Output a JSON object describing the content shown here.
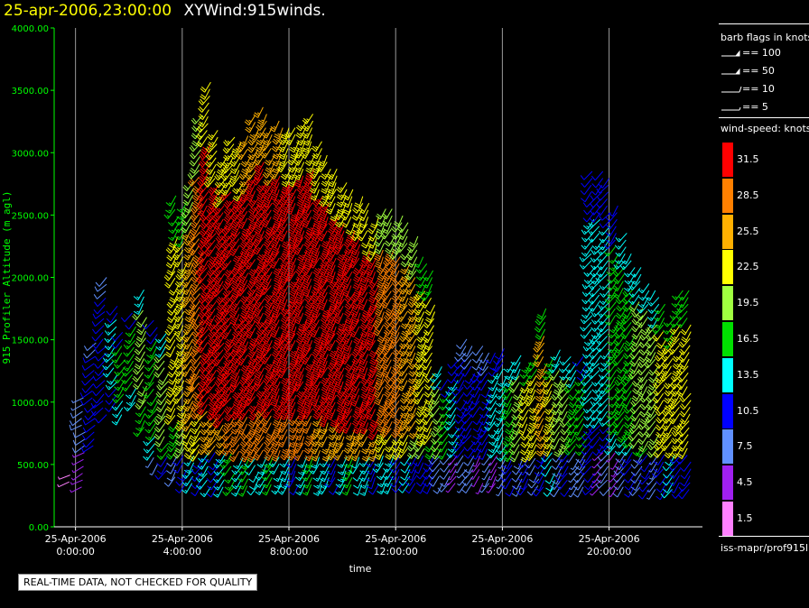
{
  "header": {
    "timestamp": "25-apr-2006,23:00:00",
    "plot_title": "XYWind:915winds."
  },
  "legend": {
    "barb_title": "barb flags in knots",
    "barbs": [
      {
        "label": "== 100",
        "kind": "flag"
      },
      {
        "label": "== 50",
        "kind": "flag"
      },
      {
        "label": "== 10",
        "kind": "full"
      },
      {
        "label": "== 5",
        "kind": "half"
      }
    ],
    "speed_title": "wind-speed: knots",
    "speed_scale": [
      {
        "label": "31.5",
        "color": "#ff0000"
      },
      {
        "label": "28.5",
        "color": "#ff8000"
      },
      {
        "label": "25.5",
        "color": "#ffb000"
      },
      {
        "label": "22.5",
        "color": "#ffff00"
      },
      {
        "label": "19.5",
        "color": "#a0ff40"
      },
      {
        "label": "16.5",
        "color": "#00e000"
      },
      {
        "label": "13.5",
        "color": "#00ffff"
      },
      {
        "label": "10.5",
        "color": "#0000ff"
      },
      {
        "label": "7.5",
        "color": "#6090ff"
      },
      {
        "label": "4.5",
        "color": "#a020f0"
      },
      {
        "label": "1.5",
        "color": "#ff80ff"
      }
    ]
  },
  "footer": {
    "quality_note": "REAL-TIME DATA, NOT CHECKED FOR QUALITY",
    "product": "iss-mapr/prof915l"
  },
  "chart_data": {
    "type": "wind-barb",
    "ylabel": "915 Profiler Altitude (m agl)",
    "xlabel": "time",
    "ylim": [
      0,
      4000
    ],
    "yticks": [
      "0.00",
      "500.00",
      "1000.00",
      "1500.00",
      "2000.00",
      "2500.00",
      "3000.00",
      "3500.00",
      "4000.00"
    ],
    "xlim_hours": [
      -0.8,
      23.5
    ],
    "xticks": [
      {
        "hour": 0,
        "date": "25-Apr-2006",
        "time": "0:00:00"
      },
      {
        "hour": 4,
        "date": "25-Apr-2006",
        "time": "4:00:00"
      },
      {
        "hour": 8,
        "date": "25-Apr-2006",
        "time": "8:00:00"
      },
      {
        "hour": 12,
        "date": "25-Apr-2006",
        "time": "12:00:00"
      },
      {
        "hour": 16,
        "date": "25-Apr-2006",
        "time": "16:00:00"
      },
      {
        "hour": 20,
        "date": "25-Apr-2006",
        "time": "20:00:00"
      }
    ],
    "speed_bins_kts": [
      1.5,
      4.5,
      7.5,
      10.5,
      13.5,
      16.5,
      19.5,
      22.5,
      25.5,
      28.5,
      31.5
    ],
    "profiles": [
      {
        "hour": -0.2,
        "top": 420,
        "bottom": 360,
        "speed": 8,
        "dir": 250
      },
      {
        "hour": 0.3,
        "top": 1050,
        "bottom": 320,
        "speed": 9,
        "dir": 240
      },
      {
        "hour": 0.7,
        "top": 1500,
        "bottom": 650,
        "speed": 12,
        "dir": 230
      },
      {
        "hour": 1.1,
        "top": 2000,
        "bottom": 900,
        "speed": 12,
        "dir": 225
      },
      {
        "hour": 1.5,
        "top": 1800,
        "bottom": 1000,
        "speed": 15,
        "dir": 220
      },
      {
        "hour": 1.8,
        "top": 1600,
        "bottom": 900,
        "speed": 17,
        "dir": 215
      },
      {
        "hour": 2.2,
        "top": 1750,
        "bottom": 1000,
        "speed": 16,
        "dir": 215
      },
      {
        "hour": 2.6,
        "top": 1900,
        "bottom": 800,
        "speed": 19,
        "dir": 210
      },
      {
        "hour": 3.0,
        "top": 1700,
        "bottom": 500,
        "speed": 16,
        "dir": 215
      },
      {
        "hour": 3.4,
        "top": 1600,
        "bottom": 450,
        "speed": 20,
        "dir": 215
      },
      {
        "hour": 3.8,
        "top": 2700,
        "bottom": 400,
        "speed": 22,
        "dir": 210
      },
      {
        "hour": 4.1,
        "top": 2650,
        "bottom": 350,
        "speed": 24,
        "dir": 210
      },
      {
        "hour": 4.4,
        "top": 2800,
        "bottom": 350,
        "speed": 27,
        "dir": 210
      },
      {
        "hour": 4.7,
        "top": 3300,
        "bottom": 330,
        "speed": 30,
        "dir": 215
      },
      {
        "hour": 5.0,
        "top": 3600,
        "bottom": 320,
        "speed": 32,
        "dir": 215
      },
      {
        "hour": 5.3,
        "top": 3200,
        "bottom": 320,
        "speed": 33,
        "dir": 215
      },
      {
        "hour": 5.6,
        "top": 3000,
        "bottom": 320,
        "speed": 33,
        "dir": 215
      },
      {
        "hour": 5.9,
        "top": 3150,
        "bottom": 320,
        "speed": 34,
        "dir": 215
      },
      {
        "hour": 6.2,
        "top": 3100,
        "bottom": 330,
        "speed": 34,
        "dir": 210
      },
      {
        "hour": 6.5,
        "top": 3150,
        "bottom": 330,
        "speed": 35,
        "dir": 210
      },
      {
        "hour": 6.8,
        "top": 3300,
        "bottom": 330,
        "speed": 35,
        "dir": 210
      },
      {
        "hour": 7.1,
        "top": 3400,
        "bottom": 340,
        "speed": 35,
        "dir": 210
      },
      {
        "hour": 7.4,
        "top": 3250,
        "bottom": 340,
        "speed": 35,
        "dir": 210
      },
      {
        "hour": 7.7,
        "top": 3300,
        "bottom": 340,
        "speed": 35,
        "dir": 205
      },
      {
        "hour": 8.0,
        "top": 3200,
        "bottom": 340,
        "speed": 34,
        "dir": 205
      },
      {
        "hour": 8.3,
        "top": 3200,
        "bottom": 340,
        "speed": 34,
        "dir": 205
      },
      {
        "hour": 8.6,
        "top": 3300,
        "bottom": 340,
        "speed": 34,
        "dir": 205
      },
      {
        "hour": 8.9,
        "top": 3350,
        "bottom": 340,
        "speed": 34,
        "dir": 205
      },
      {
        "hour": 9.2,
        "top": 3100,
        "bottom": 340,
        "speed": 33,
        "dir": 205
      },
      {
        "hour": 9.5,
        "top": 3000,
        "bottom": 340,
        "speed": 33,
        "dir": 205
      },
      {
        "hour": 9.8,
        "top": 2900,
        "bottom": 340,
        "speed": 33,
        "dir": 205
      },
      {
        "hour": 10.1,
        "top": 2800,
        "bottom": 340,
        "speed": 33,
        "dir": 205
      },
      {
        "hour": 10.4,
        "top": 2750,
        "bottom": 340,
        "speed": 32,
        "dir": 205
      },
      {
        "hour": 10.7,
        "top": 2700,
        "bottom": 340,
        "speed": 32,
        "dir": 205
      },
      {
        "hour": 11.0,
        "top": 2600,
        "bottom": 340,
        "speed": 31,
        "dir": 205
      },
      {
        "hour": 11.3,
        "top": 2500,
        "bottom": 340,
        "speed": 31,
        "dir": 205
      },
      {
        "hour": 11.6,
        "top": 2600,
        "bottom": 350,
        "speed": 30,
        "dir": 205
      },
      {
        "hour": 11.9,
        "top": 2550,
        "bottom": 350,
        "speed": 29,
        "dir": 210
      },
      {
        "hour": 12.2,
        "top": 2500,
        "bottom": 350,
        "speed": 28,
        "dir": 210
      },
      {
        "hour": 12.5,
        "top": 2450,
        "bottom": 350,
        "speed": 27,
        "dir": 210
      },
      {
        "hour": 12.8,
        "top": 2350,
        "bottom": 350,
        "speed": 26,
        "dir": 210
      },
      {
        "hour": 13.1,
        "top": 2200,
        "bottom": 350,
        "speed": 24,
        "dir": 210
      },
      {
        "hour": 13.4,
        "top": 2100,
        "bottom": 350,
        "speed": 22,
        "dir": 210
      },
      {
        "hour": 13.7,
        "top": 1300,
        "bottom": 350,
        "speed": 19,
        "dir": 215
      },
      {
        "hour": 14.0,
        "top": 1200,
        "bottom": 350,
        "speed": 16,
        "dir": 215
      },
      {
        "hour": 14.3,
        "top": 1350,
        "bottom": 350,
        "speed": 14,
        "dir": 215
      },
      {
        "hour": 14.6,
        "top": 1550,
        "bottom": 350,
        "speed": 12,
        "dir": 215
      },
      {
        "hour": 14.9,
        "top": 1500,
        "bottom": 350,
        "speed": 11,
        "dir": 215
      },
      {
        "hour": 15.2,
        "top": 1450,
        "bottom": 350,
        "speed": 11,
        "dir": 210
      },
      {
        "hour": 15.5,
        "top": 1400,
        "bottom": 350,
        "speed": 12,
        "dir": 210
      },
      {
        "hour": 15.8,
        "top": 1400,
        "bottom": 350,
        "speed": 13,
        "dir": 210
      },
      {
        "hour": 16.1,
        "top": 1450,
        "bottom": 330,
        "speed": 15,
        "dir": 210
      },
      {
        "hour": 16.4,
        "top": 1350,
        "bottom": 330,
        "speed": 18,
        "dir": 210
      },
      {
        "hour": 16.7,
        "top": 1400,
        "bottom": 330,
        "speed": 20,
        "dir": 210
      },
      {
        "hour": 17.0,
        "top": 1350,
        "bottom": 330,
        "speed": 22,
        "dir": 210
      },
      {
        "hour": 17.3,
        "top": 1400,
        "bottom": 330,
        "speed": 24,
        "dir": 210
      },
      {
        "hour": 17.6,
        "top": 1800,
        "bottom": 320,
        "speed": 25,
        "dir": 210
      },
      {
        "hour": 17.9,
        "top": 1400,
        "bottom": 320,
        "speed": 23,
        "dir": 210
      },
      {
        "hour": 18.2,
        "top": 1450,
        "bottom": 320,
        "speed": 21,
        "dir": 210
      },
      {
        "hour": 18.5,
        "top": 1400,
        "bottom": 320,
        "speed": 19,
        "dir": 215
      },
      {
        "hour": 18.8,
        "top": 1350,
        "bottom": 320,
        "speed": 18,
        "dir": 215
      },
      {
        "hour": 19.1,
        "top": 1400,
        "bottom": 320,
        "speed": 17,
        "dir": 215
      },
      {
        "hour": 19.4,
        "top": 2850,
        "bottom": 320,
        "speed": 15,
        "dir": 220
      },
      {
        "hour": 19.7,
        "top": 2900,
        "bottom": 320,
        "speed": 14,
        "dir": 220
      },
      {
        "hour": 20.0,
        "top": 2800,
        "bottom": 320,
        "speed": 15,
        "dir": 220
      },
      {
        "hour": 20.3,
        "top": 2600,
        "bottom": 320,
        "speed": 17,
        "dir": 215
      },
      {
        "hour": 20.6,
        "top": 2400,
        "bottom": 320,
        "speed": 18,
        "dir": 215
      },
      {
        "hour": 20.9,
        "top": 2200,
        "bottom": 320,
        "speed": 18,
        "dir": 215
      },
      {
        "hour": 21.2,
        "top": 2100,
        "bottom": 320,
        "speed": 19,
        "dir": 215
      },
      {
        "hour": 21.5,
        "top": 2000,
        "bottom": 300,
        "speed": 20,
        "dir": 215
      },
      {
        "hour": 21.8,
        "top": 1900,
        "bottom": 300,
        "speed": 21,
        "dir": 215
      },
      {
        "hour": 22.1,
        "top": 1800,
        "bottom": 300,
        "speed": 22,
        "dir": 215
      },
      {
        "hour": 22.4,
        "top": 1700,
        "bottom": 300,
        "speed": 23,
        "dir": 215
      },
      {
        "hour": 22.7,
        "top": 1900,
        "bottom": 300,
        "speed": 24,
        "dir": 215
      },
      {
        "hour": 23.0,
        "top": 1900,
        "bottom": 300,
        "speed": 22,
        "dir": 215
      }
    ]
  }
}
